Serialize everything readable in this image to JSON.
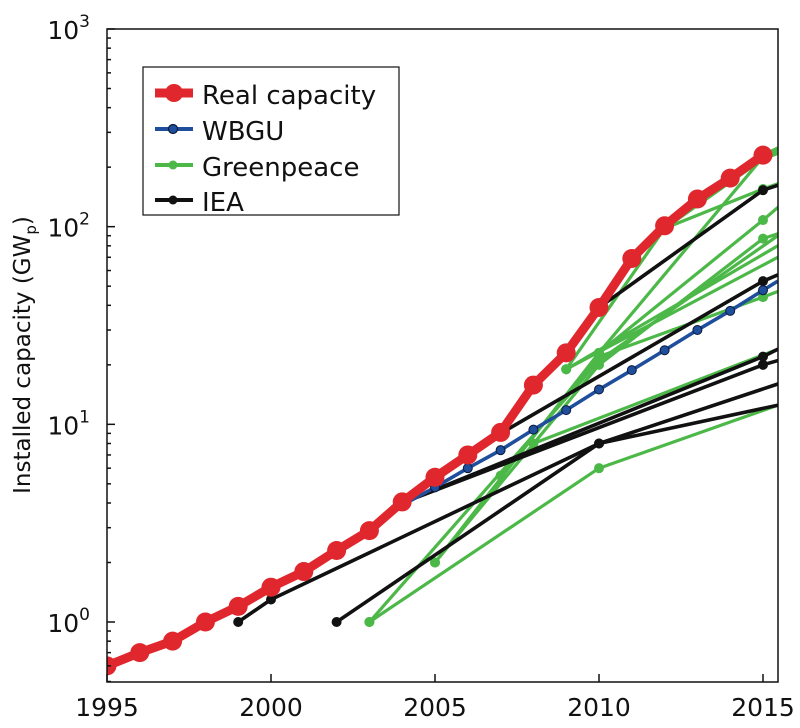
{
  "chart_data": {
    "type": "line",
    "title": "",
    "xlabel": "",
    "ylabel": "Installed capacity (GW",
    "ylabel_subscript": "p",
    "ylabel_suffix": ")",
    "yscale": "log",
    "xlim": [
      1995,
      2015.45
    ],
    "ylim": [
      0.5,
      1000
    ],
    "x_ticks": [
      1995,
      2000,
      2005,
      2010,
      2015
    ],
    "x_tick_labels": [
      "1995",
      "2000",
      "2005",
      "2010",
      "2015"
    ],
    "y_ticks": [
      1,
      10,
      100,
      1000
    ],
    "y_tick_labels": [
      {
        "base": "10",
        "exp": "0"
      },
      {
        "base": "10",
        "exp": "1"
      },
      {
        "base": "10",
        "exp": "2"
      },
      {
        "base": "10",
        "exp": "3"
      }
    ],
    "grid": false,
    "legend_position": "top-left",
    "colors": {
      "real": "#e0272d",
      "wbgu": "#1f4e9c",
      "greenpeace": "#4cb848",
      "iea": "#111111"
    },
    "legend": [
      {
        "key": "real",
        "label": "Real capacity"
      },
      {
        "key": "wbgu",
        "label": "WBGU"
      },
      {
        "key": "greenpeace",
        "label": "Greenpeace"
      },
      {
        "key": "iea",
        "label": "IEA"
      }
    ],
    "series": [
      {
        "name": "Greenpeace",
        "key": "greenpeace",
        "group": "projections",
        "lines": [
          {
            "points": [
              [
                2003,
                1.0
              ],
              [
                2010,
                6.0
              ],
              [
                2015.45,
                12.5
              ]
            ]
          },
          {
            "points": [
              [
                2003,
                1.0
              ],
              [
                2010,
                21
              ],
              [
                2015.45,
                90
              ]
            ]
          },
          {
            "points": [
              [
                2005,
                2.0
              ],
              [
                2010,
                23
              ],
              [
                2015,
                108
              ],
              [
                2015.45,
                125
              ]
            ]
          },
          {
            "points": [
              [
                2005,
                2.0
              ],
              [
                2010,
                20
              ],
              [
                2015,
                87
              ],
              [
                2015.45,
                92
              ]
            ]
          },
          {
            "points": [
              [
                2007,
                5.5
              ],
              [
                2010,
                22
              ],
              [
                2015,
                44
              ],
              [
                2015.45,
                47
              ]
            ]
          },
          {
            "points": [
              [
                2009,
                19
              ],
              [
                2012,
                98
              ],
              [
                2015,
                230
              ],
              [
                2015.45,
                250
              ]
            ]
          },
          {
            "points": [
              [
                2009,
                19
              ],
              [
                2015.45,
                70
              ]
            ]
          },
          {
            "points": [
              [
                2009,
                19
              ],
              [
                2015.45,
                80
              ]
            ]
          },
          {
            "points": [
              [
                2010,
                23
              ],
              [
                2015,
                225
              ],
              [
                2015.45,
                245
              ]
            ]
          },
          {
            "points": [
              [
                2012,
                98
              ],
              [
                2015,
                155
              ],
              [
                2015.45,
                165
              ]
            ]
          },
          {
            "points": [
              [
                2012,
                98
              ],
              [
                2015,
                220
              ],
              [
                2015.45,
                235
              ]
            ]
          },
          {
            "points": [
              [
                2008,
                8
              ],
              [
                2015.45,
                24
              ]
            ]
          }
        ]
      },
      {
        "name": "IEA",
        "key": "iea",
        "group": "projections",
        "lines": [
          {
            "points": [
              [
                1999,
                1.0
              ],
              [
                2000,
                1.3
              ],
              [
                2010,
                8.0
              ],
              [
                2015.45,
                16
              ]
            ]
          },
          {
            "points": [
              [
                2002,
                1.0
              ],
              [
                2010,
                8.0
              ],
              [
                2015.45,
                12.5
              ]
            ]
          },
          {
            "points": [
              [
                2004,
                4.0
              ],
              [
                2015,
                22
              ],
              [
                2015.45,
                24
              ]
            ]
          },
          {
            "points": [
              [
                2004,
                4.0
              ],
              [
                2015,
                20
              ],
              [
                2015.45,
                21
              ]
            ]
          },
          {
            "points": [
              [
                2007,
                9.0
              ],
              [
                2015,
                53
              ],
              [
                2015.45,
                57
              ]
            ]
          },
          {
            "points": [
              [
                2010,
                39
              ],
              [
                2015,
                153
              ],
              [
                2015.45,
                162
              ]
            ]
          }
        ]
      },
      {
        "name": "WBGU",
        "key": "wbgu",
        "x": [
          2000,
          2001,
          2002,
          2003,
          2004,
          2005,
          2006,
          2007,
          2008,
          2009,
          2010,
          2011,
          2012,
          2013,
          2014,
          2015,
          2015.45
        ],
        "values": [
          1.5,
          1.85,
          2.35,
          3.0,
          3.9,
          4.8,
          6.0,
          7.4,
          9.4,
          11.8,
          15,
          18.8,
          23.7,
          30,
          37.5,
          47.7,
          53
        ]
      },
      {
        "name": "Real capacity",
        "key": "real",
        "x": [
          1995,
          1996,
          1997,
          1998,
          1999,
          2000,
          2001,
          2002,
          2003,
          2004,
          2005,
          2006,
          2007,
          2008,
          2009,
          2010,
          2011,
          2012,
          2013,
          2014,
          2015
        ],
        "values": [
          0.6,
          0.7,
          0.8,
          1.0,
          1.2,
          1.5,
          1.8,
          2.3,
          2.9,
          4.05,
          5.4,
          7.0,
          9.1,
          15.8,
          23,
          39,
          69,
          101,
          138,
          176,
          230
        ]
      }
    ]
  }
}
